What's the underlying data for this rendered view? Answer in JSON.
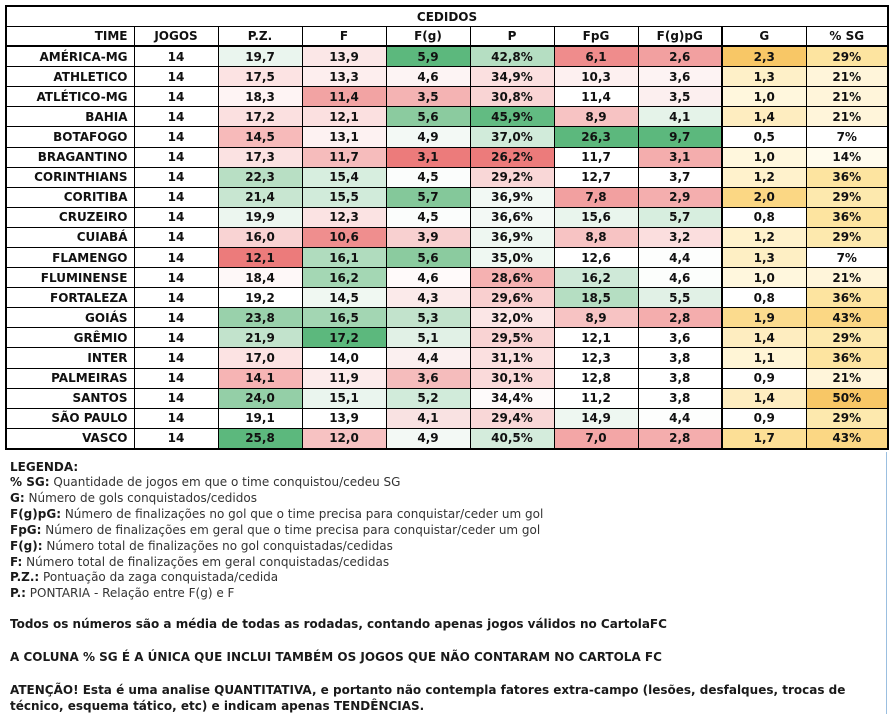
{
  "table": {
    "title": "CEDIDOS",
    "headers": [
      "TIME",
      "JOGOS",
      "P.Z.",
      "F",
      "F(g)",
      "P",
      "FpG",
      "F(g)pG",
      "G",
      "% SG"
    ],
    "rows": [
      [
        "AMÉRICA-MG",
        "14",
        "19,7",
        "13,9",
        "5,9",
        "42,8%",
        "6,1",
        "2,6",
        "2,3",
        "29%"
      ],
      [
        "ATHLETICO",
        "14",
        "17,5",
        "13,3",
        "4,6",
        "34,9%",
        "10,3",
        "3,6",
        "1,3",
        "21%"
      ],
      [
        "ATLÉTICO-MG",
        "14",
        "18,3",
        "11,4",
        "3,5",
        "30,8%",
        "11,4",
        "3,5",
        "1,0",
        "21%"
      ],
      [
        "BAHIA",
        "14",
        "17,2",
        "12,1",
        "5,6",
        "45,9%",
        "8,9",
        "4,1",
        "1,4",
        "21%"
      ],
      [
        "BOTAFOGO",
        "14",
        "14,5",
        "13,1",
        "4,9",
        "37,0%",
        "26,3",
        "9,7",
        "0,5",
        "7%"
      ],
      [
        "BRAGANTINO",
        "14",
        "17,3",
        "11,7",
        "3,1",
        "26,2%",
        "11,7",
        "3,1",
        "1,0",
        "14%"
      ],
      [
        "CORINTHIANS",
        "14",
        "22,3",
        "15,4",
        "4,5",
        "29,2%",
        "12,7",
        "3,7",
        "1,2",
        "36%"
      ],
      [
        "CORITIBA",
        "14",
        "21,4",
        "15,5",
        "5,7",
        "36,9%",
        "7,8",
        "2,9",
        "2,0",
        "29%"
      ],
      [
        "CRUZEIRO",
        "14",
        "19,9",
        "12,3",
        "4,5",
        "36,6%",
        "15,6",
        "5,7",
        "0,8",
        "36%"
      ],
      [
        "CUIABÁ",
        "14",
        "16,0",
        "10,6",
        "3,9",
        "36,9%",
        "8,8",
        "3,2",
        "1,2",
        "29%"
      ],
      [
        "FLAMENGO",
        "14",
        "12,1",
        "16,1",
        "5,6",
        "35,0%",
        "12,6",
        "4,4",
        "1,3",
        "7%"
      ],
      [
        "FLUMINENSE",
        "14",
        "18,4",
        "16,2",
        "4,6",
        "28,6%",
        "16,2",
        "4,6",
        "1,0",
        "21%"
      ],
      [
        "FORTALEZA",
        "14",
        "19,2",
        "14,5",
        "4,3",
        "29,6%",
        "18,5",
        "5,5",
        "0,8",
        "36%"
      ],
      [
        "GOIÁS",
        "14",
        "23,8",
        "16,5",
        "5,3",
        "32,0%",
        "8,9",
        "2,8",
        "1,9",
        "43%"
      ],
      [
        "GRÊMIO",
        "14",
        "21,9",
        "17,2",
        "5,1",
        "29,5%",
        "12,1",
        "3,6",
        "1,4",
        "29%"
      ],
      [
        "INTER",
        "14",
        "17,0",
        "14,0",
        "4,4",
        "31,1%",
        "12,3",
        "3,8",
        "1,1",
        "36%"
      ],
      [
        "PALMEIRAS",
        "14",
        "14,1",
        "11,9",
        "3,6",
        "30,1%",
        "12,8",
        "3,8",
        "0,9",
        "21%"
      ],
      [
        "SANTOS",
        "14",
        "24,0",
        "15,1",
        "5,2",
        "34,4%",
        "11,2",
        "3,8",
        "1,4",
        "50%"
      ],
      [
        "SÃO PAULO",
        "14",
        "19,1",
        "13,9",
        "4,1",
        "29,4%",
        "14,9",
        "4,4",
        "0,9",
        "29%"
      ],
      [
        "VASCO",
        "14",
        "25,8",
        "12,0",
        "4,9",
        "40,5%",
        "7,0",
        "2,8",
        "1,7",
        "43%"
      ]
    ],
    "colors": [
      [
        "#ffffff",
        "#ffffff",
        "#eaf5ee",
        "#fbe7e7",
        "#5cb87d",
        "#b5dec2",
        "#ef8c8c",
        "#f2a0a0",
        "#f8c766",
        "#fde4a0"
      ],
      [
        "#ffffff",
        "#ffffff",
        "#fce3e3",
        "#fdeeee",
        "#fdf4f4",
        "#fbe0e0",
        "#fdf0f0",
        "#fdf3f3",
        "#fef0c8",
        "#fff5da"
      ],
      [
        "#ffffff",
        "#ffffff",
        "#fef4f4",
        "#f2a3a3",
        "#f4b3b3",
        "#f9d4d4",
        "#ffffff",
        "#fcefef",
        "#fff7dd",
        "#fff5da"
      ],
      [
        "#ffffff",
        "#ffffff",
        "#fbe0e0",
        "#fbe0e0",
        "#8bcb9f",
        "#62bb82",
        "#f7c3c3",
        "#e5f3e9",
        "#feedc0",
        "#fff5da"
      ],
      [
        "#ffffff",
        "#ffffff",
        "#f7baba",
        "#fdf2f2",
        "#f3f9f5",
        "#d1ebda",
        "#5cb87d",
        "#5cb87d",
        "#ffffff",
        "#ffffff"
      ],
      [
        "#ffffff",
        "#ffffff",
        "#fbe2e2",
        "#f6bcbc",
        "#ec7b7b",
        "#ec7b7b",
        "#ffffff",
        "#f4adad",
        "#fff7dd",
        "#fffbed"
      ],
      [
        "#ffffff",
        "#ffffff",
        "#b8dfc4",
        "#d7eedf",
        "#fbfdfc",
        "#f9d7d7",
        "#ffffff",
        "#ffffff",
        "#fff2cc",
        "#fde4a0"
      ],
      [
        "#ffffff",
        "#ffffff",
        "#c8e6d1",
        "#d1ebda",
        "#84c89a",
        "#f2f9f4",
        "#f2a0a0",
        "#f4aeae",
        "#fbd784",
        "#fde9ae"
      ],
      [
        "#ffffff",
        "#ffffff",
        "#ecf6ef",
        "#fbe3e3",
        "#fbfdfc",
        "#f3f9f5",
        "#e9f5ed",
        "#d7eedf",
        "#ffffff",
        "#fde4a0"
      ],
      [
        "#ffffff",
        "#ffffff",
        "#f9d3d3",
        "#ef8e8e",
        "#f8d0d0",
        "#eef7f1",
        "#f7c3c3",
        "#fbdede",
        "#fff2cc",
        "#fde9ae"
      ],
      [
        "#ffffff",
        "#ffffff",
        "#ec7b7b",
        "#b0dcbe",
        "#8bcb9f",
        "#eff8f2",
        "#ffffff",
        "#fdfefd",
        "#feefc4",
        "#ffffff"
      ],
      [
        "#ffffff",
        "#ffffff",
        "#fef8f8",
        "#a4d7b4",
        "#fffafa",
        "#f5b1b1",
        "#cfe9d8",
        "#fcfefc",
        "#fff7dd",
        "#fff5da"
      ],
      [
        "#ffffff",
        "#ffffff",
        "#ffffff",
        "#f0f8f2",
        "#fbeaea",
        "#f9cfcf",
        "#b5dec2",
        "#e1f1e6",
        "#ffffff",
        "#fde4a0"
      ],
      [
        "#ffffff",
        "#ffffff",
        "#99d1ab",
        "#a3d6b3",
        "#c2e3cc",
        "#fbe6e6",
        "#f7c3c3",
        "#f4adad",
        "#fbdb8e",
        "#fbd784"
      ],
      [
        "#ffffff",
        "#ffffff",
        "#c2e3cc",
        "#5cb87d",
        "#e1f1e6",
        "#f9d3d3",
        "#ffffff",
        "#ffffff",
        "#feedc0",
        "#fde9ae"
      ],
      [
        "#ffffff",
        "#ffffff",
        "#fce3e3",
        "#ffffff",
        "#fbf0f0",
        "#fbe0e0",
        "#ffffff",
        "#ffffff",
        "#fff5d6",
        "#fde4a0"
      ],
      [
        "#ffffff",
        "#ffffff",
        "#f6b4b4",
        "#fcebeb",
        "#f5bcbc",
        "#fadada",
        "#ffffff",
        "#ffffff",
        "#ffffff",
        "#fff5da"
      ],
      [
        "#ffffff",
        "#ffffff",
        "#94cfa7",
        "#eaf5ee",
        "#d1ebda",
        "#fefbfb",
        "#ffffff",
        "#ffffff",
        "#feedc0",
        "#f8c766"
      ],
      [
        "#ffffff",
        "#ffffff",
        "#ffffff",
        "#ffffff",
        "#f9e2e2",
        "#f9d7d7",
        "#eef7f1",
        "#fdfefd",
        "#ffffff",
        "#fde9ae"
      ],
      [
        "#ffffff",
        "#ffffff",
        "#5cb87d",
        "#f7c2c2",
        "#f3f9f5",
        "#d4ecdc",
        "#f3a6a6",
        "#f4adad",
        "#fcdf96",
        "#fbd784"
      ]
    ]
  },
  "legend": {
    "title": "LEGENDA:",
    "items": [
      {
        "key": "% SG:",
        "desc": "Quantidade de jogos em que o time conquistou/cedeu SG"
      },
      {
        "key": "G:",
        "desc": "Número de gols conquistados/cedidos"
      },
      {
        "key": "F(g)pG:",
        "desc": "Número de finalizações no gol que o time precisa para conquistar/ceder um gol"
      },
      {
        "key": "FpG:",
        "desc": "Número de finalizações em geral que o time precisa para conquistar/ceder um gol"
      },
      {
        "key": "F(g):",
        "desc": "Número total de finalizações no gol conquistadas/cedidas"
      },
      {
        "key": "F:",
        "desc": "Número total de finalizações em geral conquistadas/cedidas"
      },
      {
        "key": "P.Z.:",
        "desc": "Pontuação da zaga conquistada/cedida"
      },
      {
        "key": "P.:",
        "desc": "PONTARIA - Relação entre F(g) e F"
      }
    ],
    "note1": "Todos os números são a média de todas as rodadas, contando apenas jogos válidos no CartolaFC",
    "note2": "A COLUNA % SG É A ÚNICA QUE INCLUI TAMBÉM OS JOGOS QUE NÃO CONTARAM NO CARTOLA FC",
    "note3": "ATENÇÃO! Esta é uma analise QUANTITATIVA, e portanto não contempla fatores extra-campo (lesões, desfalques, trocas de técnico, esquema tático, etc) e indicam apenas TENDÊNCIAS."
  }
}
